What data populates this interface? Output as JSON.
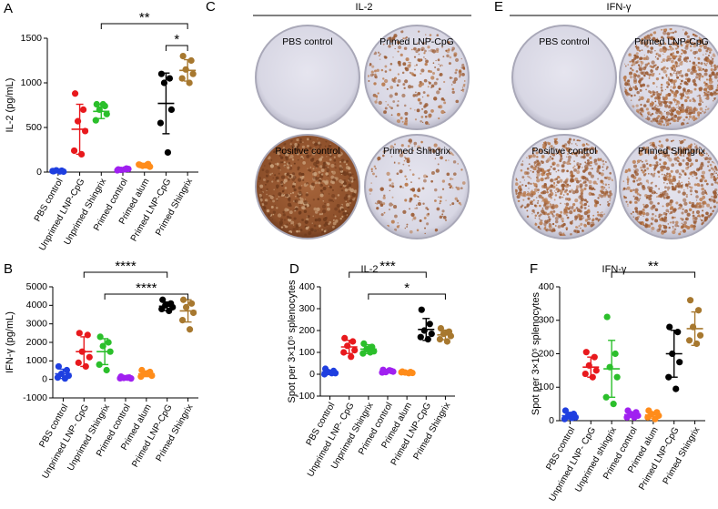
{
  "chart_data": [
    {
      "type": "dot",
      "panel": "A",
      "ylabel": "IL-2 (pg/mL)",
      "ylim": [
        0,
        1500
      ],
      "yticks": [
        0,
        500,
        1000,
        1500
      ],
      "groups": [
        {
          "name": "PBS control",
          "color": "#1f3fe0",
          "values": [
            10,
            15,
            20,
            5,
            12,
            8
          ],
          "mean": 12,
          "sd": 5
        },
        {
          "name": "Unprimed LNP-CpG",
          "color": "#e8191d",
          "values": [
            880,
            700,
            570,
            460,
            240,
            200
          ],
          "mean": 480,
          "sd": 280
        },
        {
          "name": "Unprimed Shingrix",
          "color": "#2bbf2b",
          "values": [
            760,
            740,
            700,
            650,
            580,
            760
          ],
          "mean": 680,
          "sd": 80
        },
        {
          "name": "Primed control",
          "color": "#a020f0",
          "values": [
            30,
            40,
            25,
            35,
            20,
            30
          ],
          "mean": 30,
          "sd": 8
        },
        {
          "name": "Primed alum",
          "color": "#ff8c1a",
          "values": [
            80,
            90,
            70,
            60,
            85,
            75
          ],
          "mean": 75,
          "sd": 12
        },
        {
          "name": "Primed LNP-CpG",
          "color": "#000000",
          "values": [
            1100,
            1050,
            1000,
            700,
            550,
            220
          ],
          "mean": 770,
          "sd": 340
        },
        {
          "name": "Primed Shingrix",
          "color": "#a7782f",
          "values": [
            1300,
            1250,
            1150,
            1100,
            1050,
            1000
          ],
          "mean": 1140,
          "sd": 120
        }
      ],
      "brackets": [
        {
          "label": "**",
          "from": "Unprimed Shingrix",
          "to": "Primed Shingrix"
        },
        {
          "label": "*",
          "from": "Primed LNP-CpG",
          "to": "Primed Shingrix"
        }
      ]
    },
    {
      "type": "dot",
      "panel": "B",
      "ylabel": "IFN-γ (pg/mL)",
      "ylim": [
        -1000,
        5000
      ],
      "yticks": [
        -1000,
        0,
        1000,
        2000,
        3000,
        4000,
        5000
      ],
      "groups": [
        {
          "name": "PBS control",
          "color": "#1f3fe0",
          "values": [
            700,
            500,
            300,
            200,
            100,
            50
          ],
          "mean": 300,
          "sd": 250
        },
        {
          "name": "Unprimed LNP- CpG",
          "color": "#e8191d",
          "values": [
            2500,
            2400,
            1500,
            1200,
            900,
            700
          ],
          "mean": 1500,
          "sd": 800
        },
        {
          "name": "Unprimed Shingrix",
          "color": "#2bbf2b",
          "values": [
            2300,
            2000,
            1800,
            1500,
            800,
            500
          ],
          "mean": 1500,
          "sd": 700
        },
        {
          "name": "Primed control",
          "color": "#a020f0",
          "values": [
            150,
            100,
            80,
            50,
            60,
            90
          ],
          "mean": 90,
          "sd": 40
        },
        {
          "name": "Primed alum",
          "color": "#ff8c1a",
          "values": [
            500,
            400,
            300,
            200,
            150,
            350
          ],
          "mean": 300,
          "sd": 150
        },
        {
          "name": "Primed LNP-CpG",
          "color": "#000000",
          "values": [
            4300,
            4100,
            4000,
            3900,
            3800,
            3700
          ],
          "mean": 3950,
          "sd": 230
        },
        {
          "name": "Primed Shingrix",
          "color": "#a7782f",
          "values": [
            4300,
            4100,
            3900,
            3600,
            3200,
            2700
          ],
          "mean": 3700,
          "sd": 600
        }
      ],
      "brackets": [
        {
          "label": "****",
          "from": "Unprimed LNP- CpG",
          "to": "Primed LNP-CpG"
        },
        {
          "label": "****",
          "from": "Unprimed Shingrix",
          "to": "Primed Shingrix"
        }
      ]
    },
    {
      "type": "dot",
      "panel": "D",
      "title": "IL-2",
      "ylabel": "Spot per 3×10⁵ splenocytes",
      "ylim": [
        -100,
        400
      ],
      "yticks": [
        -100,
        0,
        100,
        200,
        300,
        400
      ],
      "groups": [
        {
          "name": "PBS control",
          "color": "#1f3fe0",
          "values": [
            25,
            15,
            10,
            5,
            0,
            5
          ],
          "mean": 10,
          "sd": 8
        },
        {
          "name": "Unprimed LNP- CpG",
          "color": "#e8191d",
          "values": [
            165,
            150,
            130,
            110,
            100,
            80
          ],
          "mean": 125,
          "sd": 30
        },
        {
          "name": "Unprimed Shingrix",
          "color": "#2bbf2b",
          "values": [
            140,
            125,
            115,
            105,
            95,
            100
          ],
          "mean": 115,
          "sd": 20
        },
        {
          "name": "Primed control",
          "color": "#a020f0",
          "values": [
            20,
            15,
            10,
            12,
            8,
            18
          ],
          "mean": 13,
          "sd": 5
        },
        {
          "name": "Primed alum",
          "color": "#ff8c1a",
          "values": [
            12,
            10,
            8,
            6,
            9,
            5
          ],
          "mean": 8,
          "sd": 3
        },
        {
          "name": "Primed LNP-CpG",
          "color": "#000000",
          "values": [
            295,
            230,
            200,
            185,
            170,
            160
          ],
          "mean": 205,
          "sd": 50
        },
        {
          "name": "Primed Shingrix",
          "color": "#a7782f",
          "values": [
            210,
            195,
            185,
            175,
            160,
            150
          ],
          "mean": 180,
          "sd": 22
        }
      ],
      "brackets": [
        {
          "label": "***",
          "from": "Unprimed LNP- CpG",
          "to": "Primed LNP-CpG"
        },
        {
          "label": "*",
          "from": "Unprimed Shingrix",
          "to": "Primed Shingrix"
        }
      ]
    },
    {
      "type": "dot",
      "panel": "F",
      "title": "IFN-γ",
      "ylabel": "Spot per 3×10⁵ splenocytes",
      "ylim": [
        0,
        400
      ],
      "yticks": [
        0,
        100,
        200,
        300,
        400
      ],
      "groups": [
        {
          "name": "PBS control",
          "color": "#1f3fe0",
          "values": [
            30,
            20,
            15,
            10,
            5,
            8
          ],
          "mean": 15,
          "sd": 10
        },
        {
          "name": "Unprimed LNP- CpG",
          "color": "#e8191d",
          "values": [
            205,
            190,
            165,
            150,
            140,
            130
          ],
          "mean": 160,
          "sd": 30
        },
        {
          "name": "Unprimed shingrix",
          "color": "#2bbf2b",
          "values": [
            310,
            200,
            160,
            130,
            70,
            50
          ],
          "mean": 155,
          "sd": 85
        },
        {
          "name": "Primed control",
          "color": "#a020f0",
          "values": [
            30,
            25,
            20,
            15,
            10,
            10
          ],
          "mean": 18,
          "sd": 8
        },
        {
          "name": "Primed alum",
          "color": "#ff8c1a",
          "values": [
            30,
            25,
            20,
            15,
            10,
            5
          ],
          "mean": 17,
          "sd": 9
        },
        {
          "name": "Primed LNP-CpG",
          "color": "#000000",
          "values": [
            280,
            265,
            200,
            175,
            130,
            95
          ],
          "mean": 200,
          "sd": 70
        },
        {
          "name": "Primed Shingrix",
          "color": "#a7782f",
          "values": [
            360,
            330,
            280,
            255,
            240,
            230
          ],
          "mean": 275,
          "sd": 50
        }
      ],
      "brackets": [
        {
          "label": "**",
          "from": "Unprimed shingrix",
          "to": "Primed Shingrix"
        }
      ]
    }
  ],
  "image_panels": [
    {
      "panel": "C",
      "title": "IL-2",
      "wells": [
        "PBS control",
        "Primed LNP-CpG",
        "Positive control",
        "Primed Shingrix"
      ]
    },
    {
      "panel": "E",
      "title": "IFN-γ",
      "wells": [
        "PBS control",
        "Primed LNP-CpG",
        "Positive control",
        "Primed Shingrix"
      ]
    }
  ]
}
